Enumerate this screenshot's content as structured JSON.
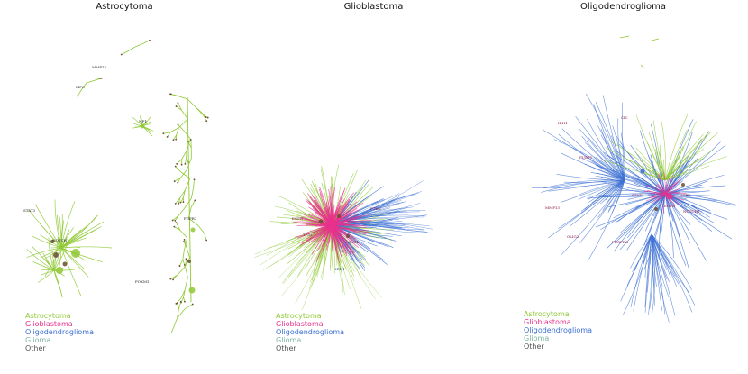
{
  "colors": {
    "astrocytoma": "#8fc934",
    "glioblastoma": "#e8318c",
    "oligodendroglioma": "#3b6fd3",
    "glioma": "#7fb8a0",
    "other": "#555555",
    "node": "#6a4b2e"
  },
  "panels": [
    {
      "title": "Astrocytoma"
    },
    {
      "title": "Glioblastoma"
    },
    {
      "title": "Oligodendroglioma"
    }
  ],
  "legend": {
    "astrocytoma": "Astrocytoma",
    "glioblastoma": "Glioblastoma",
    "oligodendroglioma": "Oligodendroglioma",
    "glioma": "Glioma",
    "other": "Other"
  },
  "genes": {
    "astro": [
      "MMP13",
      "MPO",
      "STAT3",
      "FOXM1",
      "NOTCH1",
      "FGFR3",
      "NF1"
    ],
    "glio": [
      "EGFR",
      "PTEN",
      "TP53",
      "IDH1",
      "CDK4"
    ],
    "oligo": [
      "IDH1",
      "CIC",
      "FUBP1",
      "MMP13",
      "STAT3",
      "EGFR",
      "NOTCH1",
      "PDGFRA",
      "OLIG2",
      "ATRX"
    ]
  }
}
